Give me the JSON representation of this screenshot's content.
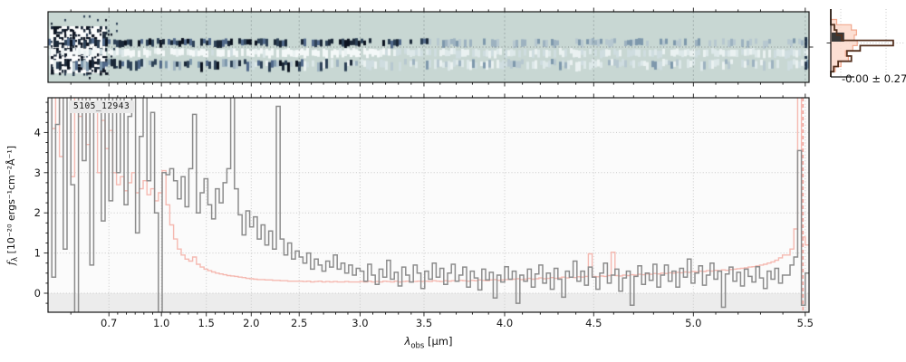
{
  "title_label": "5105_12943",
  "labels": {
    "xlabel": {
      "main": "λ",
      "sub": "obs",
      "unit": " [μm]"
    },
    "ylabel": {
      "main": "f",
      "sub": "λ",
      "unit": " [10⁻²⁰ ergs⁻¹cm⁻²Å⁻¹]"
    },
    "hist_stat": "-0.00 ± 0.27"
  },
  "colors": {
    "spectrum_gray": "#8c8c8c",
    "error_pink": "#f5b9b1",
    "vline_pink": "#f2a49c",
    "hist_outline_brown": "#54311f",
    "hist_fill_pink": "#fcd9cb",
    "hist_fill_edge": "#f2a98f",
    "hist_dark_bar": "#383838",
    "panel2d_bg": "#c8d7d3",
    "grid": "#c9c9c9",
    "spine": "#161616",
    "plot_bg": "#fbfbfb",
    "below_zero_band": "#ececec",
    "label_bg": "#e9e9e9"
  },
  "chart_data": [
    {
      "type": "line",
      "name": "1d-extracted-spectrum",
      "title": "5105_12943",
      "xlabel": "λobs [μm]",
      "ylabel": "fλ [10⁻²⁰ ergs⁻¹cm⁻²Å⁻¹]",
      "x_axis": {
        "scale": "nonlinear-prism-dispersion",
        "range": [
          0.62,
          5.52
        ],
        "tick_values": [
          0.7,
          1.0,
          1.5,
          2.0,
          2.5,
          3.0,
          3.5,
          4.0,
          4.5,
          5.0,
          5.5
        ],
        "tick_labels": [
          "0.7",
          "1.0",
          "1.5",
          "2.0",
          "2.5",
          "3.0",
          "3.5",
          "4.0",
          "4.5",
          "5.0",
          "5.5"
        ],
        "anchors": [
          [
            0.62,
            0.0
          ],
          [
            0.7,
            0.08
          ],
          [
            1.0,
            0.149
          ],
          [
            1.5,
            0.208
          ],
          [
            2.0,
            0.267
          ],
          [
            2.5,
            0.33
          ],
          [
            3.0,
            0.41
          ],
          [
            3.5,
            0.494
          ],
          [
            4.0,
            0.6
          ],
          [
            4.5,
            0.717
          ],
          [
            5.0,
            0.848
          ],
          [
            5.5,
            0.995
          ],
          [
            5.52,
            1.0
          ]
        ]
      },
      "y_axis": {
        "min": -0.47,
        "max": 4.86,
        "ticks": [
          0,
          1,
          2,
          3,
          4
        ]
      },
      "grid": "dotted",
      "vline": {
        "lambda": 5.49,
        "style": "dashed"
      },
      "series": [
        {
          "name": "spectrum",
          "color": "#8c8c8c",
          "values": [
            5.2,
            0.4,
            4.2,
            5.2,
            1.1,
            5.2,
            2.7,
            -0.6,
            5.2,
            3.3,
            5.2,
            0.7,
            4.7,
            5.2,
            1.8,
            5.2,
            2.3,
            5.2,
            3.0,
            5.2,
            2.2,
            4.4,
            5.2,
            1.5,
            3.9,
            5.2,
            2.8,
            4.5,
            2.0,
            -0.5,
            3.0,
            2.95,
            3.1,
            2.8,
            2.35,
            2.9,
            2.15,
            3.1,
            4.45,
            2.0,
            2.5,
            2.85,
            2.2,
            1.85,
            2.6,
            2.25,
            2.75,
            3.1,
            5.2,
            2.6,
            1.95,
            1.45,
            2.05,
            1.65,
            1.9,
            1.35,
            1.7,
            1.2,
            1.55,
            1.1,
            4.65,
            1.35,
            0.95,
            1.25,
            0.85,
            1.05,
            0.9,
            0.75,
            1.0,
            0.6,
            0.85,
            0.7,
            0.55,
            0.8,
            0.65,
            0.95,
            0.6,
            0.75,
            0.5,
            0.7,
            0.45,
            0.62,
            0.55,
            0.3,
            0.72,
            0.45,
            0.22,
            0.6,
            0.4,
            0.82,
            0.35,
            0.52,
            0.18,
            0.65,
            0.45,
            0.28,
            0.7,
            0.5,
            0.12,
            0.55,
            0.35,
            0.75,
            0.4,
            0.62,
            0.22,
            0.5,
            0.72,
            0.3,
            0.45,
            0.65,
            0.15,
            0.55,
            0.38,
            0.08,
            0.6,
            0.33,
            0.52,
            -0.12,
            0.45,
            0.28,
            0.66,
            0.35,
            0.55,
            -0.25,
            0.45,
            0.3,
            0.6,
            0.15,
            0.48,
            0.7,
            0.25,
            0.5,
            0.1,
            0.62,
            0.35,
            -0.1,
            0.55,
            0.4,
            0.8,
            0.3,
            0.55,
            0.2,
            0.65,
            0.4,
            0.1,
            0.5,
            0.75,
            0.25,
            0.45,
            0.6,
            0.05,
            0.38,
            0.55,
            -0.3,
            0.42,
            0.68,
            0.22,
            0.5,
            0.32,
            0.72,
            0.15,
            0.45,
            0.7,
            0.3,
            0.55,
            0.15,
            0.62,
            0.4,
            0.85,
            0.25,
            0.5,
            0.68,
            0.2,
            0.45,
            0.75,
            0.35,
            0.55,
            -0.35,
            0.48,
            0.65,
            0.3,
            0.52,
            0.18,
            0.6,
            0.42,
            0.28,
            0.66,
            0.38,
            0.12,
            0.55,
            0.35,
            0.62,
            0.25,
            0.45,
            0.45,
            0.7,
            0.9,
            3.55,
            -0.3,
            0.5
          ]
        },
        {
          "name": "error",
          "color": "#f5b9b1",
          "values": [
            5.2,
            4.1,
            5.2,
            3.4,
            5.2,
            5.2,
            2.9,
            5.2,
            4.4,
            5.2,
            3.7,
            5.2,
            5.2,
            3.0,
            4.3,
            3.6,
            4.05,
            3.0,
            2.7,
            2.9,
            2.55,
            2.75,
            3.0,
            2.5,
            2.6,
            2.8,
            2.45,
            2.6,
            2.3,
            2.5,
            3.05,
            2.2,
            1.7,
            1.35,
            1.1,
            0.95,
            0.85,
            0.8,
            0.9,
            0.72,
            0.65,
            0.6,
            0.56,
            0.53,
            0.5,
            0.48,
            0.46,
            0.44,
            0.43,
            0.42,
            0.4,
            0.39,
            0.37,
            0.36,
            0.35,
            0.34,
            0.34,
            0.33,
            0.33,
            0.32,
            0.32,
            0.31,
            0.31,
            0.3,
            0.3,
            0.3,
            0.3,
            0.29,
            0.3,
            0.28,
            0.29,
            0.3,
            0.28,
            0.29,
            0.28,
            0.29,
            0.28,
            0.28,
            0.29,
            0.28,
            0.28,
            0.28,
            0.29,
            0.28,
            0.3,
            0.28,
            0.29,
            0.28,
            0.3,
            0.29,
            0.28,
            0.3,
            0.28,
            0.29,
            0.3,
            0.28,
            0.29,
            0.3,
            0.29,
            0.3,
            0.29,
            0.31,
            0.3,
            0.29,
            0.31,
            0.3,
            0.31,
            0.3,
            0.32,
            0.31,
            0.3,
            0.32,
            0.31,
            0.33,
            0.32,
            0.31,
            0.33,
            0.34,
            0.32,
            0.33,
            0.34,
            0.34,
            0.35,
            0.36,
            0.34,
            0.35,
            0.37,
            0.35,
            0.36,
            0.38,
            0.36,
            0.37,
            0.39,
            0.37,
            0.38,
            0.4,
            0.38,
            0.4,
            0.39,
            0.41,
            0.4,
            0.42,
            0.98,
            0.42,
            0.41,
            0.43,
            0.42,
            0.44,
            1.02,
            0.44,
            0.43,
            0.45,
            0.44,
            0.46,
            0.45,
            0.47,
            0.46,
            0.48,
            0.47,
            0.49,
            0.48,
            0.5,
            0.49,
            0.51,
            0.5,
            0.52,
            0.51,
            0.53,
            0.52,
            0.54,
            0.53,
            0.55,
            0.54,
            0.56,
            0.55,
            0.57,
            0.56,
            0.58,
            0.57,
            0.59,
            0.6,
            0.61,
            0.62,
            0.63,
            0.65,
            0.66,
            0.68,
            0.7,
            0.72,
            0.75,
            0.78,
            0.82,
            0.88,
            0.95,
            0.95,
            1.1,
            1.6,
            5.2,
            1.4,
            1.2
          ]
        }
      ]
    },
    {
      "type": "histogram",
      "name": "residual-distribution",
      "orientation": "horizontal",
      "annotation": "-0.00 ± 0.27",
      "n_bins": 13,
      "series": [
        {
          "name": "residual-outline",
          "color": "#54311f",
          "bin_width_fracs": [
            0,
            0,
            0,
            0.05,
            0.08,
            0.15,
            0.85,
            0.4,
            0.22,
            0.28,
            0.1,
            0.04,
            0
          ]
        },
        {
          "name": "error-fill",
          "color": "#fcd9cb",
          "edge_color": "#f2a98f",
          "bin_width_fracs": [
            0,
            0,
            0.08,
            0.28,
            0.35,
            0.32,
            0.36,
            0.3,
            0.2,
            0.24,
            0.14,
            0.06,
            0
          ]
        },
        {
          "name": "dark-bar",
          "color": "#383838",
          "y_frac": [
            0.347,
            0.48
          ],
          "width_frac": 0.17
        }
      ],
      "grid": "dotted",
      "center_line": "dotted"
    },
    {
      "type": "heatmap",
      "name": "2d-spectrum-cutout",
      "background": "#c8d7d3",
      "x_range": [
        0.62,
        5.52
      ],
      "features": [
        "dense black noise block at blue end (0.62-0.95 um) on white backing",
        "dark source trace band just above center, fading to pale blue-gray toward red end",
        "bright white extraction band at center",
        "noisy gray-blue band below center extending full width",
        "dark column at extreme red edge",
        "center-row tick marks on left and right spines"
      ]
    }
  ]
}
